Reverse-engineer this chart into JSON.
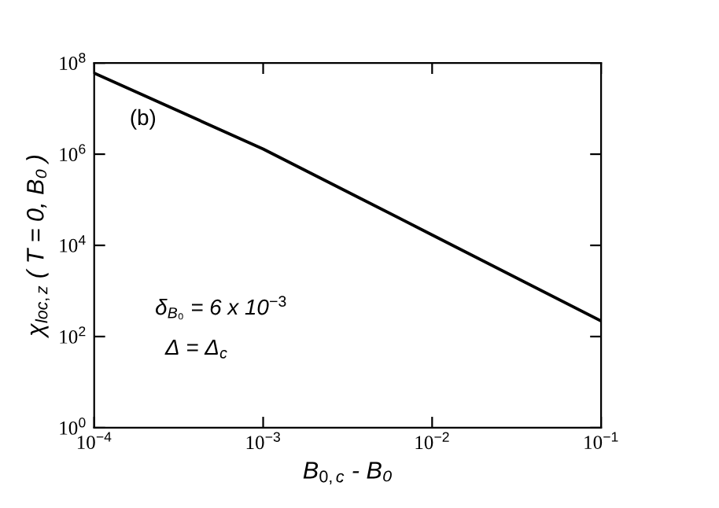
{
  "chart_data": {
    "type": "line",
    "log": "xy",
    "xlabel": "B$_{0,c}$ - B₀",
    "ylabel": "χ$_{loc,z}$ ( T = 0, B₀ )",
    "annotations": [
      "(b)",
      "δ$_{B₀}$ = 6 x 10$^{−3}$",
      "Δ = Δ$_{c}$"
    ],
    "x": [
      0.0001,
      0.001,
      0.01,
      0.1
    ],
    "series": [
      {
        "color": "#000000",
        "values": [
          60000000,
          1300000,
          17000,
          220
        ]
      }
    ],
    "xlim": [
      0.0001,
      0.1
    ],
    "ylim": [
      1,
      100000000
    ],
    "xticks": [
      {
        "value": 0.0001,
        "label": "10$^{−4}$"
      },
      {
        "value": 0.001,
        "label": "10$^{−3}$"
      },
      {
        "value": 0.01,
        "label": "10$^{−2}$"
      },
      {
        "value": 0.1,
        "label": "10$^{−1}$"
      }
    ],
    "yticks": [
      {
        "value": 1,
        "label": "10$^{0}$"
      },
      {
        "value": 100,
        "label": "10$^{2}$"
      },
      {
        "value": 10000,
        "label": "10$^{4}$"
      },
      {
        "value": 1000000,
        "label": "10$^{6}$"
      },
      {
        "value": 100000000,
        "label": "10$^{8}$"
      }
    ],
    "grid": false,
    "marker": "none",
    "line_style": "solid"
  }
}
